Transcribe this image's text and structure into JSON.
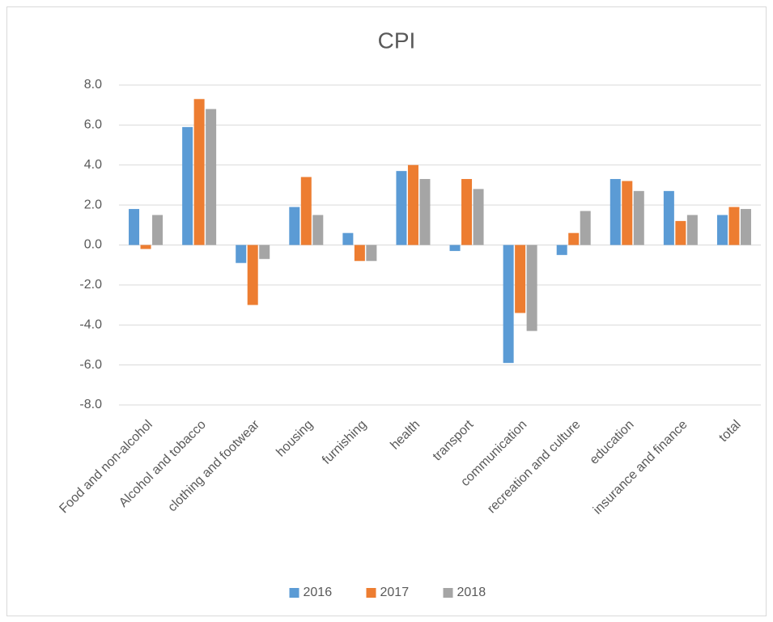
{
  "chart_data": {
    "type": "bar",
    "title": "CPI",
    "categories": [
      "Food and non-alcohol",
      "Alcohol and tobacco",
      "clothing and footwear",
      "housing",
      "furnishing",
      "health",
      "transport",
      "communication",
      "recreation and culture",
      "education",
      "insurance and finance",
      "total"
    ],
    "series": [
      {
        "name": "2016",
        "color": "#5b9bd5",
        "values": [
          1.8,
          5.9,
          -0.9,
          1.9,
          0.6,
          3.7,
          -0.3,
          -5.9,
          -0.5,
          3.3,
          2.7,
          1.5
        ]
      },
      {
        "name": "2017",
        "color": "#ed7d31",
        "values": [
          -0.2,
          7.3,
          -3.0,
          3.4,
          -0.8,
          4.0,
          3.3,
          -3.4,
          0.6,
          3.2,
          1.2,
          1.9
        ]
      },
      {
        "name": "2018",
        "color": "#a5a5a5",
        "values": [
          1.5,
          6.8,
          -0.7,
          1.5,
          -0.8,
          3.3,
          2.8,
          -4.3,
          1.7,
          2.7,
          1.5,
          1.8
        ]
      }
    ],
    "ylim": [
      -8,
      8
    ],
    "yticks": [
      {
        "value": -8,
        "label": "-8.0"
      },
      {
        "value": -6,
        "label": "-6.0"
      },
      {
        "value": -4,
        "label": "-4.0"
      },
      {
        "value": -2,
        "label": "-2.0"
      },
      {
        "value": 0,
        "label": "0.0"
      },
      {
        "value": 2,
        "label": "2.0"
      },
      {
        "value": 4,
        "label": "4.0"
      },
      {
        "value": 6,
        "label": "6.0"
      },
      {
        "value": 8,
        "label": "8.0"
      }
    ],
    "grid": true,
    "legend": "bottom"
  }
}
